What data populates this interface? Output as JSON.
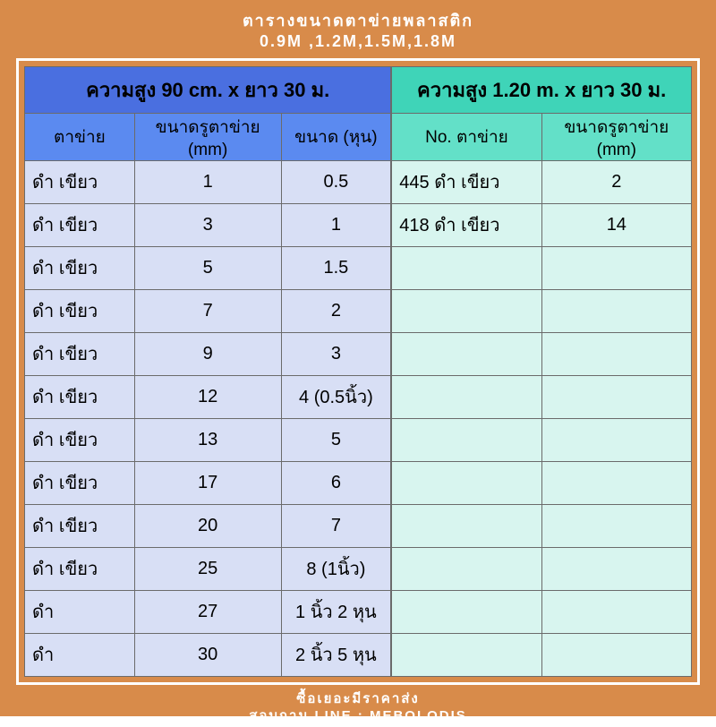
{
  "colors": {
    "page_bg": "#d88b4a",
    "frame_border": "#ffffff",
    "left_header_bg": "#4a6fe0",
    "left_subheader_bg": "#5b8af0",
    "left_cell_bg": "#d8dff5",
    "right_header_bg": "#3fd4b8",
    "right_subheader_bg": "#63e0c8",
    "right_cell_bg": "#d8f5ef",
    "cell_border": "#6b6b6b",
    "text_white": "#ffffff",
    "text_black": "#000000"
  },
  "title": {
    "line1": "ตารางขนาดตาข่ายพลาสติก",
    "line2": "0.9M ,1.2M,1.5M,1.8M"
  },
  "footer": {
    "line1": "ซื้อเยอะมีราคาส่ง",
    "line2": "สอบถาม LINE : MEBOLODIS"
  },
  "left_table": {
    "header": "ความสูง  90 cm. x ยาว 30 ม.",
    "columns": [
      "ตาข่าย",
      "ขนาดรูตาข่าย (mm)",
      "ขนาด (หุน)"
    ],
    "col_widths": [
      "30%",
      "40%",
      "30%"
    ],
    "rows": [
      [
        "ดำ เขียว",
        "1",
        "0.5"
      ],
      [
        "ดำ เขียว",
        "3",
        "1"
      ],
      [
        "ดำ เขียว",
        "5",
        "1.5"
      ],
      [
        "ดำ เขียว",
        "7",
        "2"
      ],
      [
        "ดำ เขียว",
        "9",
        "3"
      ],
      [
        "ดำ เขียว",
        "12",
        "4 (0.5นิ้ว)"
      ],
      [
        "ดำ เขียว",
        "13",
        "5"
      ],
      [
        "ดำ เขียว",
        "17",
        "6"
      ],
      [
        "ดำ เขียว",
        "20",
        "7"
      ],
      [
        "ดำ เขียว",
        "25",
        "8 (1นิ้ว)"
      ],
      [
        "ดำ",
        "27",
        "1 นิ้ว 2 หุน"
      ],
      [
        "ดำ",
        "30",
        "2 นิ้ว 5 หุน"
      ]
    ]
  },
  "right_table": {
    "header": "ความสูง  1.20 m. x ยาว 30 ม.",
    "columns": [
      "No. ตาข่าย",
      "ขนาดรูตาข่าย (mm)"
    ],
    "col_widths": [
      "50%",
      "50%"
    ],
    "rows": [
      [
        "445 ดำ เขียว",
        "2"
      ],
      [
        "418 ดำ เขียว",
        "14"
      ],
      [
        "",
        ""
      ],
      [
        "",
        ""
      ],
      [
        "",
        ""
      ],
      [
        "",
        ""
      ],
      [
        "",
        ""
      ],
      [
        "",
        ""
      ],
      [
        "",
        ""
      ],
      [
        "",
        ""
      ],
      [
        "",
        ""
      ],
      [
        "",
        ""
      ]
    ]
  }
}
